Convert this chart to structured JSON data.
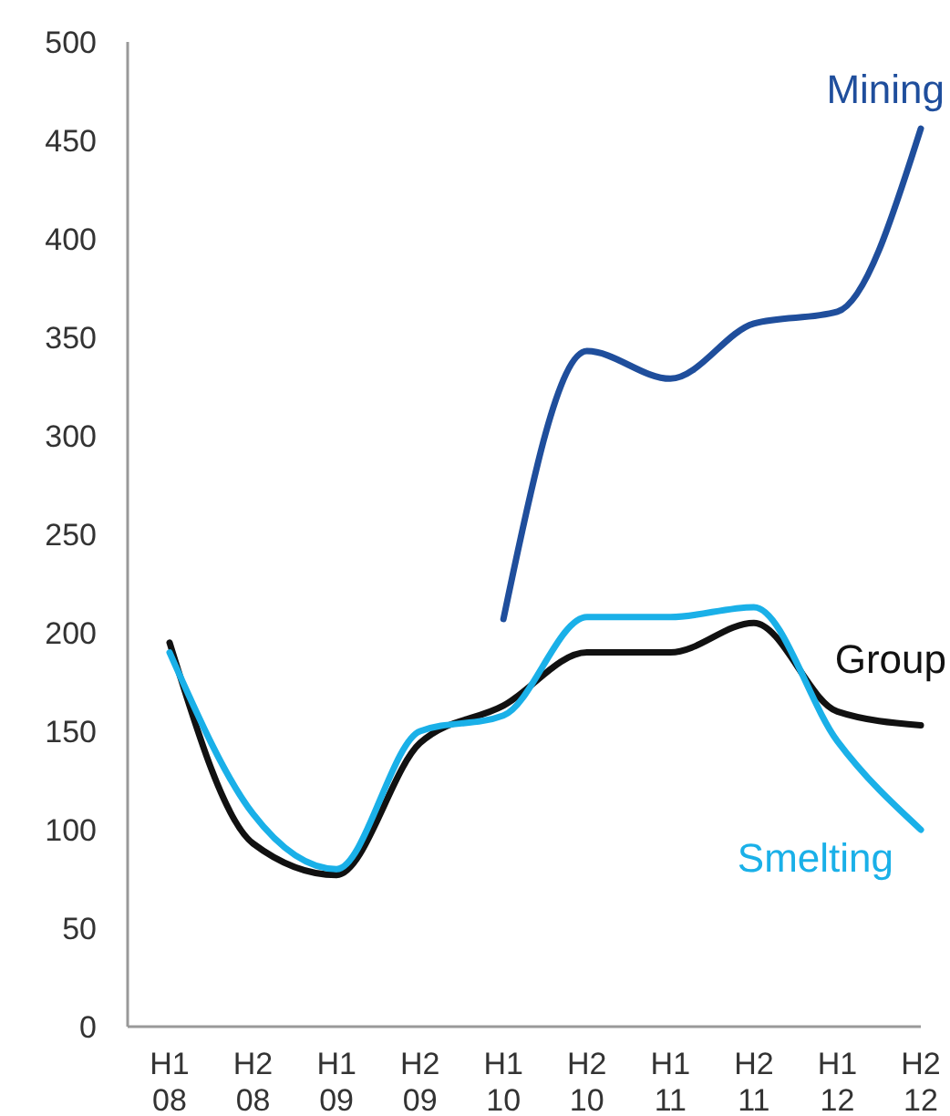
{
  "chart_data": {
    "type": "line",
    "categories": [
      "H1 08",
      "H2 08",
      "H1 09",
      "H2 09",
      "H1 10",
      "H2 10",
      "H1 11",
      "H2 11",
      "H1 12",
      "H2 12"
    ],
    "series": [
      {
        "name": "Mining",
        "color": "#1f4e9c",
        "values": [
          null,
          null,
          null,
          null,
          207,
          343,
          329,
          357,
          363,
          456
        ]
      },
      {
        "name": "Group",
        "color": "#111111",
        "values": [
          195,
          93,
          77,
          144,
          163,
          190,
          190,
          205,
          160,
          153
        ]
      },
      {
        "name": "Smelting",
        "color": "#1ab0e8",
        "values": [
          190,
          108,
          80,
          150,
          158,
          208,
          208,
          213,
          145,
          100
        ]
      }
    ],
    "ylim": [
      0,
      500
    ],
    "yticks": [
      0,
      50,
      100,
      150,
      200,
      250,
      300,
      350,
      400,
      450,
      500
    ],
    "grid": false,
    "legend": false,
    "marker": "none",
    "line_style": "solid"
  }
}
